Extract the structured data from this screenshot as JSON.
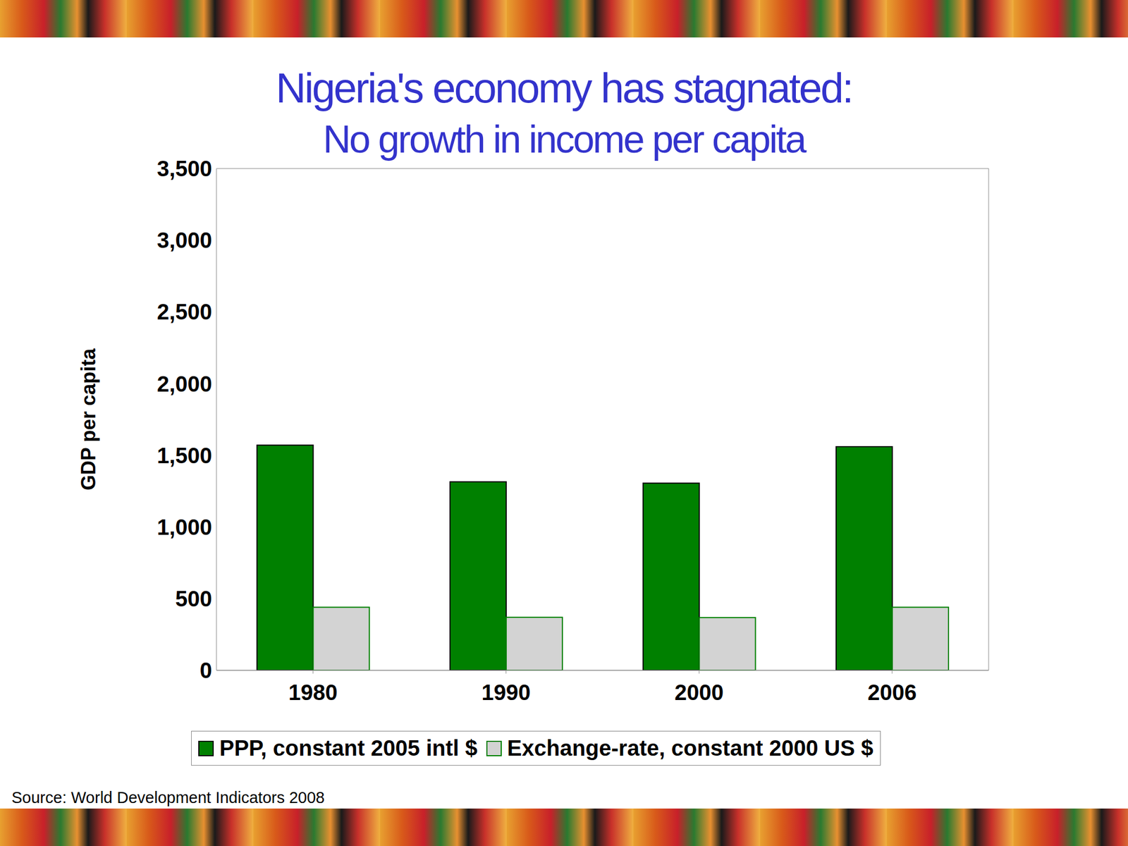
{
  "chart_data": {
    "type": "bar",
    "title": "Nigeria's economy has stagnated:",
    "subtitle": "No growth in income per capita",
    "y_label": "GDP per capita",
    "categories": [
      "1980",
      "1990",
      "2000",
      "2006"
    ],
    "series": [
      {
        "name": "PPP, constant 2005 intl $",
        "color": "#008000",
        "values": [
          1570,
          1315,
          1305,
          1560
        ]
      },
      {
        "name": "Exchange-rate, constant 2000 US $",
        "color": "#d3d3d3",
        "values": [
          440,
          370,
          368,
          440
        ]
      }
    ],
    "ylim": [
      0,
      3500
    ],
    "yticks": [
      0,
      500,
      {
        "value": 1000,
        "label": "1,000"
      },
      {
        "value": 1500,
        "label": "1,500"
      },
      {
        "value": 2000,
        "label": "2,000"
      },
      {
        "value": 2500,
        "label": "2,500"
      },
      {
        "value": 3000,
        "label": "3,000"
      },
      {
        "value": 3500,
        "label": "3,500"
      }
    ],
    "grid": true,
    "legend": "bottom",
    "annotation": "Source: World Development Indicators 2008"
  }
}
